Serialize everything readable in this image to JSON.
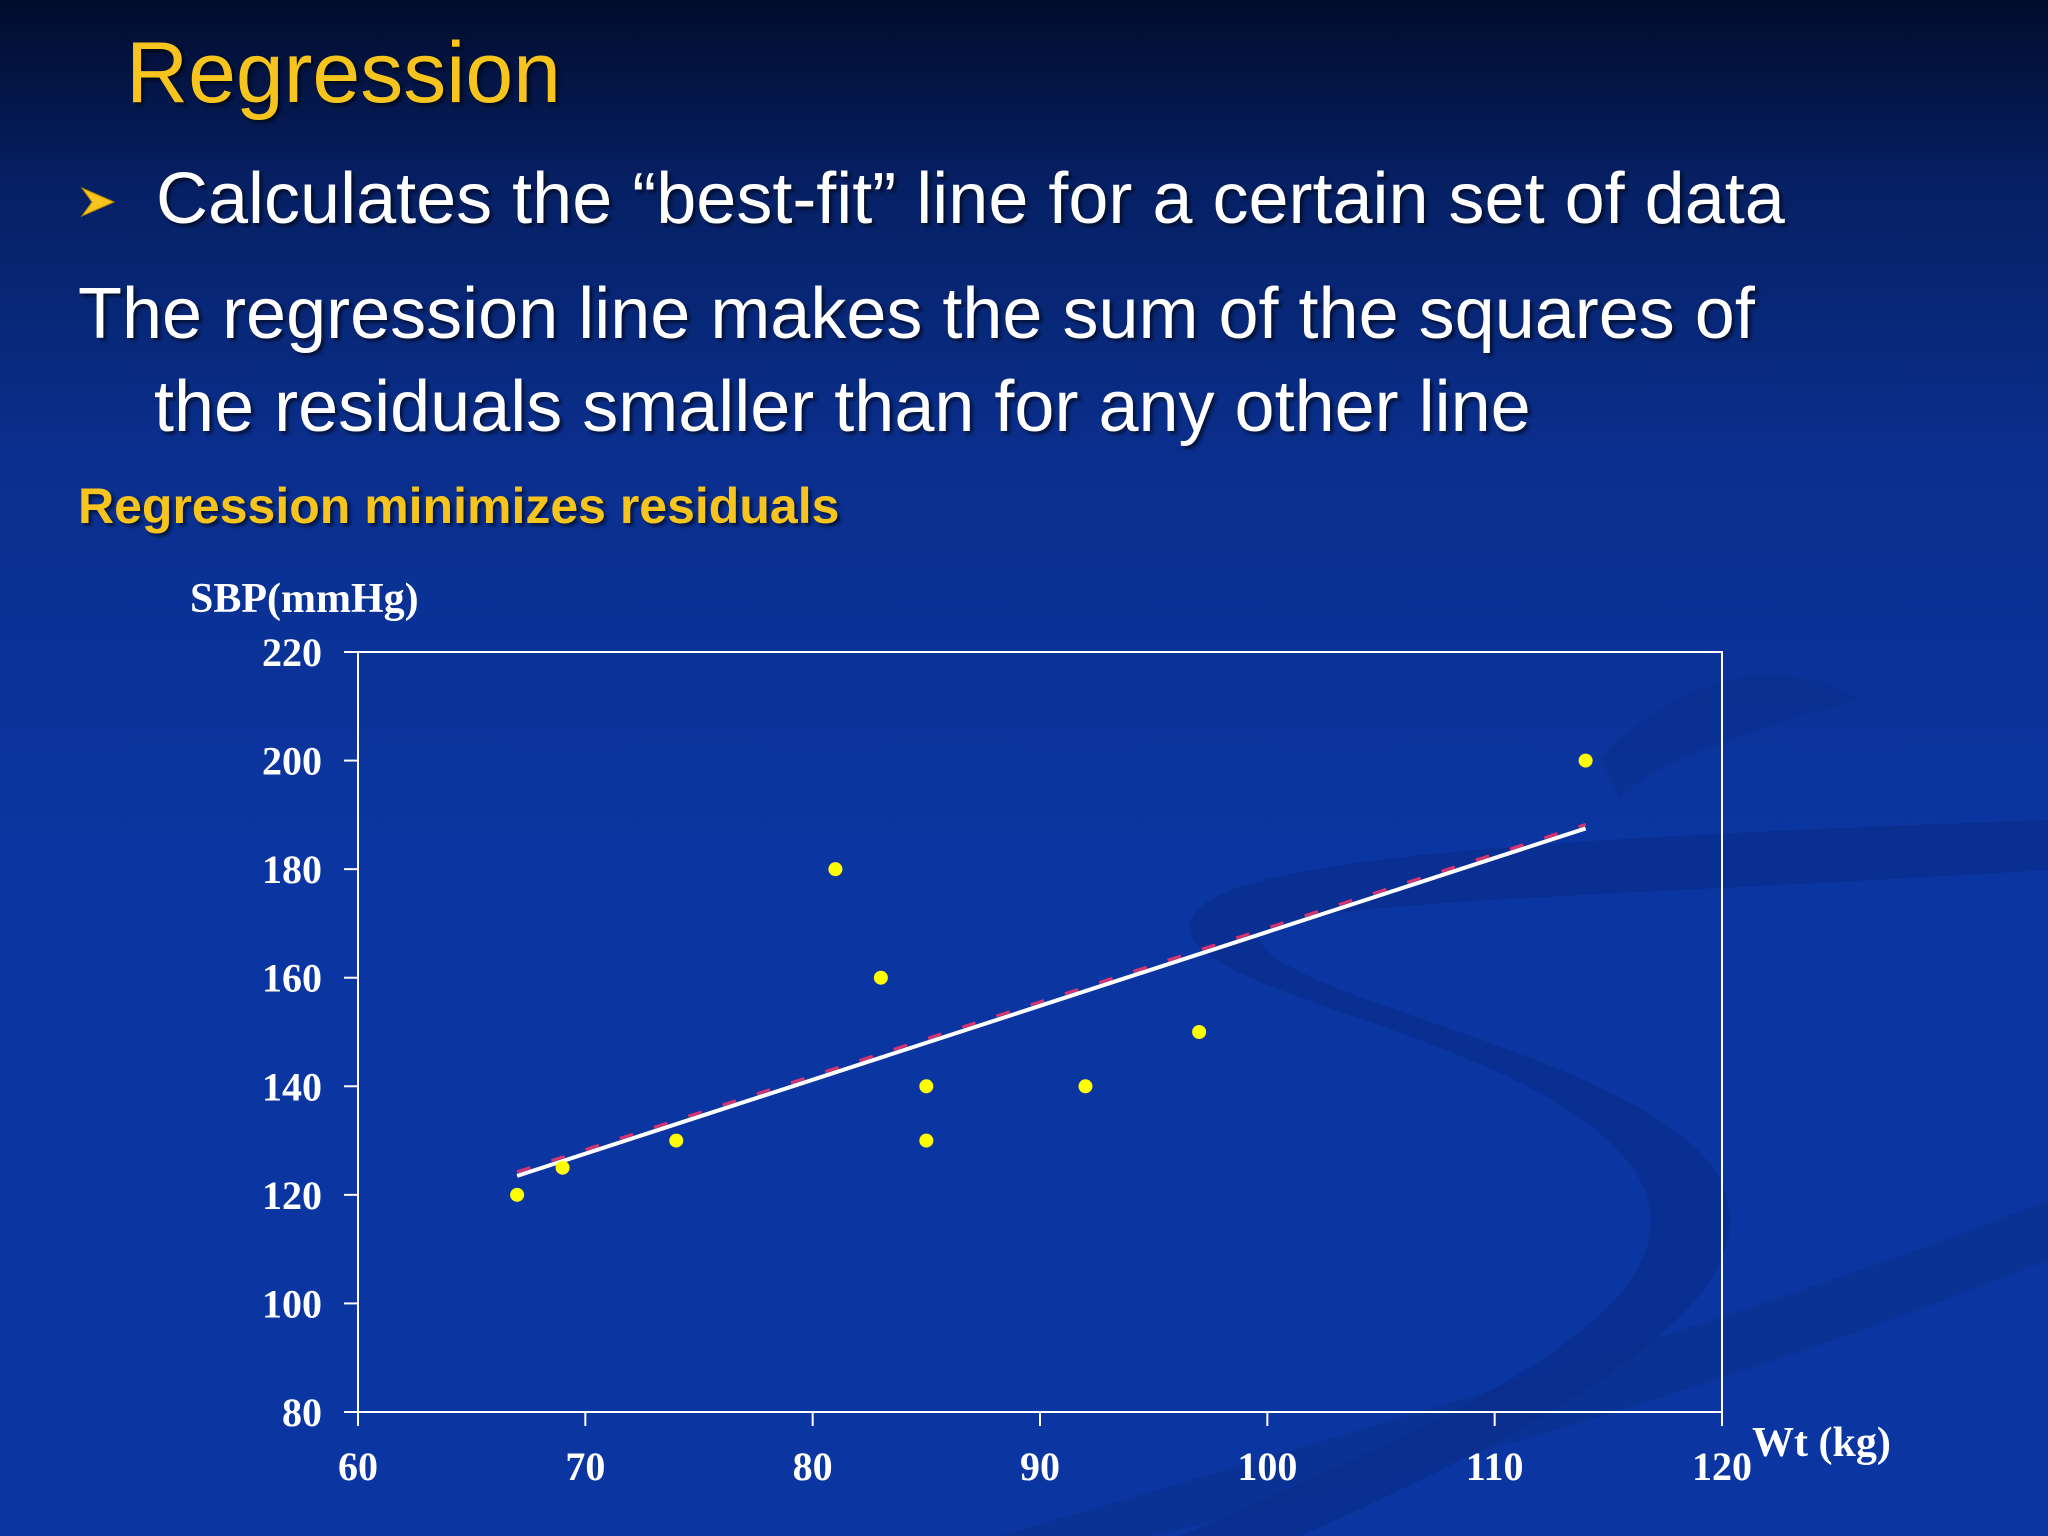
{
  "slide": {
    "title": "Regression",
    "bullet_text": "Calculates the “best-fit” line for a certain set of data",
    "paragraph_line1": "The regression line makes the sum of the squares of",
    "paragraph_line2": "the residuals smaller than for any other line",
    "subheading": "Regression minimizes residuals"
  },
  "colors": {
    "title": "#f6c41c",
    "body_text": "#ffffff",
    "points": "#ffff00",
    "fit_line": "#ffffff",
    "dashed_line": "#ff3366",
    "background": "#0b35a0"
  },
  "chart_data": {
    "type": "scatter",
    "xlabel": "Wt (kg)",
    "ylabel": "SBP(mmHg)",
    "xlim": [
      60,
      120
    ],
    "ylim": [
      80,
      220
    ],
    "x_ticks": [
      "60",
      "70",
      "80",
      "90",
      "100",
      "110",
      "120"
    ],
    "y_ticks": [
      "220",
      "200",
      "180",
      "160",
      "140",
      "120",
      "100",
      "80"
    ],
    "grid": false,
    "points": [
      {
        "x": 67,
        "y": 120
      },
      {
        "x": 69,
        "y": 125
      },
      {
        "x": 74,
        "y": 130
      },
      {
        "x": 81,
        "y": 180
      },
      {
        "x": 83,
        "y": 160
      },
      {
        "x": 85,
        "y": 140
      },
      {
        "x": 85,
        "y": 130
      },
      {
        "x": 92,
        "y": 140
      },
      {
        "x": 97,
        "y": 150
      },
      {
        "x": 114,
        "y": 200
      }
    ],
    "regression_line": {
      "x": [
        67,
        114
      ],
      "y": [
        123.5,
        187.5
      ]
    }
  }
}
